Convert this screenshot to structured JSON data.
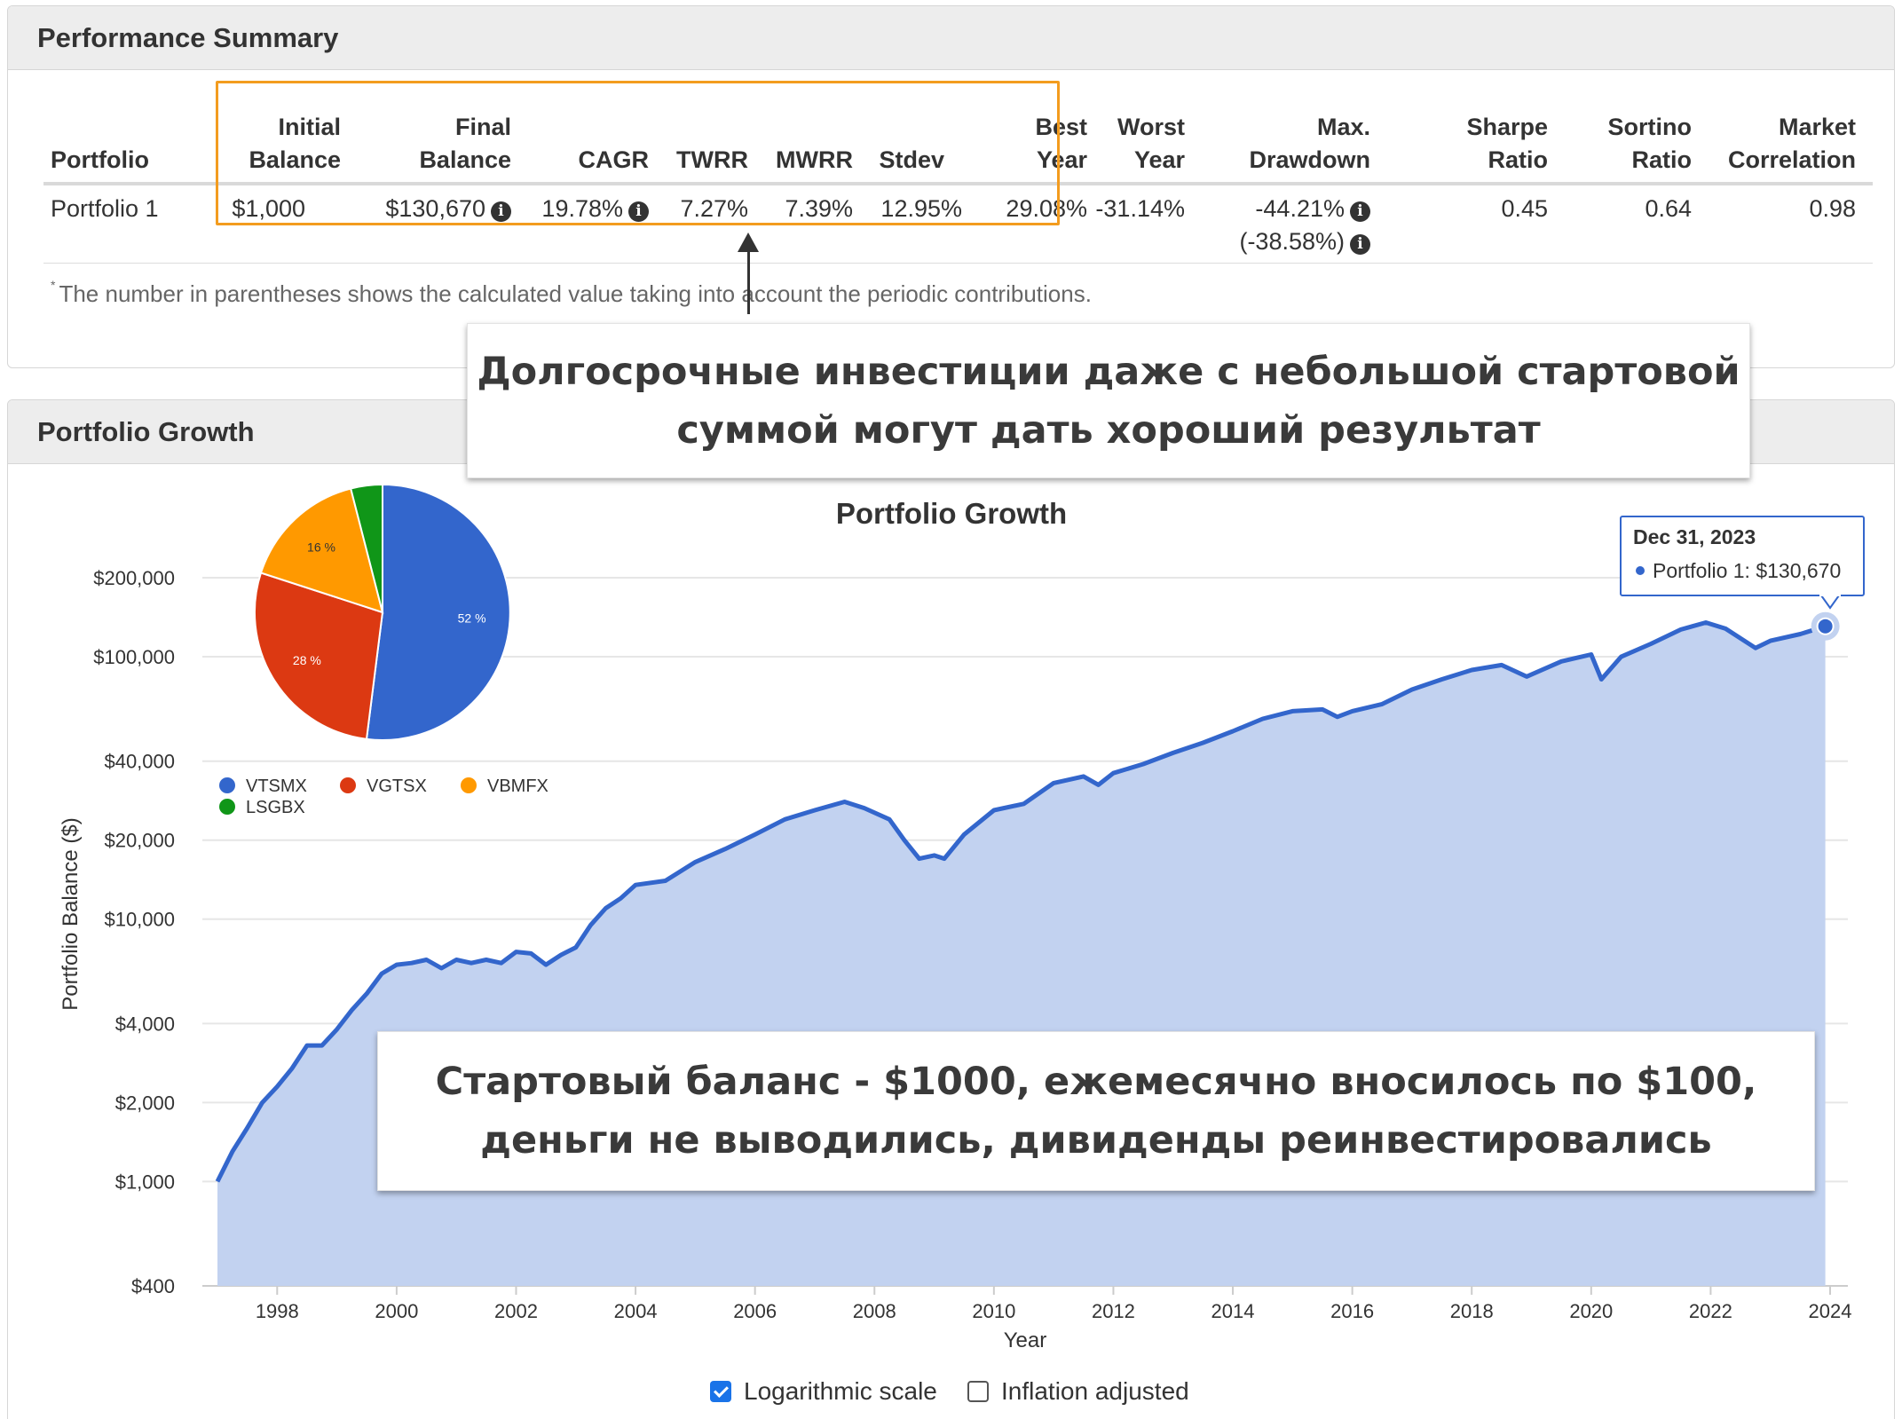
{
  "summary": {
    "title": "Performance Summary",
    "headers": {
      "portfolio": "Portfolio",
      "initial_1": "Initial",
      "initial_2": "Balance",
      "final_1": "Final",
      "final_2": "Balance",
      "cagr": "CAGR",
      "twrr": "TWRR",
      "mwrr": "MWRR",
      "stdev": "Stdev",
      "best_1": "Best",
      "best_2": "Year",
      "worst_1": "Worst",
      "worst_2": "Year",
      "maxdd_1": "Max.",
      "maxdd_2": "Drawdown",
      "sharpe_1": "Sharpe",
      "sharpe_2": "Ratio",
      "sortino_1": "Sortino",
      "sortino_2": "Ratio",
      "market_1": "Market",
      "market_2": "Correlation"
    },
    "row": {
      "portfolio": "Portfolio 1",
      "initial": "$1,000",
      "final": "$130,670",
      "cagr": "19.78%",
      "twrr": "7.27%",
      "mwrr": "7.39%",
      "stdev": "12.95%",
      "best": "29.08%",
      "worst": "-31.14%",
      "maxdd": "-44.21%",
      "maxdd_contrib": "(-38.58%)",
      "sharpe": "0.45",
      "sortino": "0.64",
      "market": "0.98"
    },
    "info_glyph": "i",
    "footnote_mark": "*",
    "footnote": "The number in parentheses shows the calculated value taking into account the periodic contributions."
  },
  "callouts": {
    "top": "Долгосрочные инвестиции даже с небольшой стартовой суммой могут дать хороший результат",
    "bottom": "Стартовый баланс - $1000, ежемесячно вносилось по $100, деньги не выводились, дивиденды реинвестировались"
  },
  "growth": {
    "title": "Portfolio Growth",
    "tooltip": {
      "date": "Dec 31, 2023",
      "series": "Portfolio 1: $130,670"
    },
    "controls": {
      "log_scale": "Logarithmic scale",
      "inflation": "Inflation adjusted"
    }
  },
  "colors": {
    "line": "#3366cc",
    "area": "#c2d2f0",
    "highlight": "#f39c1f",
    "pie_vtsmx": "#3366cc",
    "pie_vgtsx": "#dc3912",
    "pie_vbmfx": "#ff9900",
    "pie_lsgbx": "#109618"
  },
  "chart_data": [
    {
      "type": "area",
      "title": "Portfolio Growth",
      "xlabel": "Year",
      "ylabel": "Portfolio Balance ($)",
      "y_scale": "log",
      "ylim": [
        400,
        300000
      ],
      "x_ticks": [
        "1998",
        "2000",
        "2002",
        "2004",
        "2006",
        "2008",
        "2010",
        "2012",
        "2014",
        "2016",
        "2018",
        "2020",
        "2022",
        "2024"
      ],
      "y_ticks": [
        400,
        1000,
        2000,
        4000,
        10000,
        20000,
        40000,
        100000,
        200000
      ],
      "y_tick_labels": [
        "$400",
        "$1,000",
        "$2,000",
        "$4,000",
        "$10,000",
        "$20,000",
        "$40,000",
        "$100,000",
        "$200,000"
      ],
      "grid": true,
      "series": [
        {
          "name": "Portfolio 1",
          "x": [
            1997.0,
            1997.25,
            1997.5,
            1997.75,
            1998.0,
            1998.25,
            1998.5,
            1998.75,
            1999.0,
            1999.25,
            1999.5,
            1999.75,
            2000.0,
            2000.25,
            2000.5,
            2000.75,
            2001.0,
            2001.25,
            2001.5,
            2001.75,
            2002.0,
            2002.25,
            2002.5,
            2002.75,
            2003.0,
            2003.25,
            2003.5,
            2003.75,
            2004.0,
            2004.5,
            2005.0,
            2005.5,
            2006.0,
            2006.5,
            2007.0,
            2007.5,
            2007.83,
            2008.25,
            2008.5,
            2008.75,
            2009.0,
            2009.17,
            2009.5,
            2010.0,
            2010.5,
            2011.0,
            2011.5,
            2011.75,
            2012.0,
            2012.5,
            2013.0,
            2013.5,
            2014.0,
            2014.5,
            2015.0,
            2015.5,
            2015.75,
            2016.0,
            2016.5,
            2017.0,
            2017.5,
            2018.0,
            2018.5,
            2018.92,
            2019.5,
            2020.0,
            2020.17,
            2020.5,
            2021.0,
            2021.5,
            2021.92,
            2022.25,
            2022.75,
            2023.0,
            2023.5,
            2023.92
          ],
          "y": [
            1000,
            1300,
            1600,
            2000,
            2300,
            2700,
            3300,
            3300,
            3800,
            4500,
            5200,
            6200,
            6700,
            6800,
            7000,
            6500,
            7000,
            6800,
            7000,
            6800,
            7500,
            7400,
            6700,
            7300,
            7800,
            9500,
            11000,
            12000,
            13500,
            14000,
            16500,
            18500,
            21000,
            24000,
            26000,
            28000,
            26500,
            24000,
            20000,
            17000,
            17500,
            17000,
            21000,
            26000,
            27500,
            33000,
            35000,
            32500,
            36000,
            39000,
            43000,
            47000,
            52000,
            58000,
            62000,
            63000,
            59000,
            62000,
            66000,
            75000,
            82000,
            89000,
            93000,
            84000,
            96000,
            102000,
            82000,
            100000,
            112000,
            127000,
            135000,
            128000,
            108000,
            115000,
            122000,
            130670
          ]
        }
      ]
    },
    {
      "type": "pie",
      "labels": [
        "VTSMX",
        "VGTSX",
        "VBMFX",
        "LSGBX"
      ],
      "values": [
        52,
        28,
        16,
        4
      ],
      "value_labels": [
        "52 %",
        "28 %",
        "16 %",
        ""
      ],
      "legend": "bottom"
    }
  ]
}
